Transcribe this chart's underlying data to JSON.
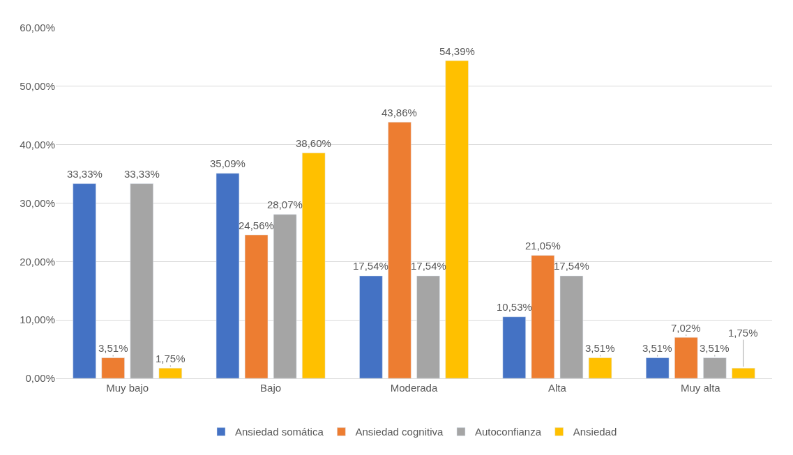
{
  "chart_data": {
    "type": "bar",
    "categories": [
      "Muy bajo",
      "Bajo",
      "Moderada",
      "Alta",
      "Muy alta"
    ],
    "series": [
      {
        "name": "Ansiedad somática",
        "color": "#4472c4",
        "values": [
          33.33,
          35.09,
          17.54,
          10.53,
          3.51
        ],
        "value_labels": [
          "33,33%",
          "35,09%",
          "17,54%",
          "10,53%",
          "3,51%"
        ]
      },
      {
        "name": "Ansiedad cognitiva",
        "color": "#ed7d31",
        "values": [
          3.51,
          24.56,
          43.86,
          21.05,
          7.02
        ],
        "value_labels": [
          "3,51%",
          "24,56%",
          "43,86%",
          "21,05%",
          "7,02%"
        ]
      },
      {
        "name": "Autoconfianza",
        "color": "#a5a5a5",
        "values": [
          33.33,
          28.07,
          17.54,
          17.54,
          3.51
        ],
        "value_labels": [
          "33,33%",
          "28,07%",
          "17,54%",
          "17,54%",
          "3,51%"
        ]
      },
      {
        "name": "Ansiedad",
        "color": "#ffc000",
        "values": [
          1.75,
          38.6,
          54.39,
          3.51,
          1.75
        ],
        "value_labels": [
          "1,75%",
          "38,60%",
          "54,39%",
          "3,51%",
          "1,75%"
        ]
      }
    ],
    "ylim": [
      0,
      60
    ],
    "yticks": [
      {
        "value": 0,
        "label": "0,00%"
      },
      {
        "value": 10,
        "label": "10,00%"
      },
      {
        "value": 20,
        "label": "20,00%"
      },
      {
        "value": 30,
        "label": "30,00%"
      },
      {
        "value": 40,
        "label": "40,00%"
      },
      {
        "value": 50,
        "label": "50,00%"
      },
      {
        "value": 60,
        "label": "60,00%"
      }
    ],
    "grid": "y",
    "legend": "bottom"
  }
}
